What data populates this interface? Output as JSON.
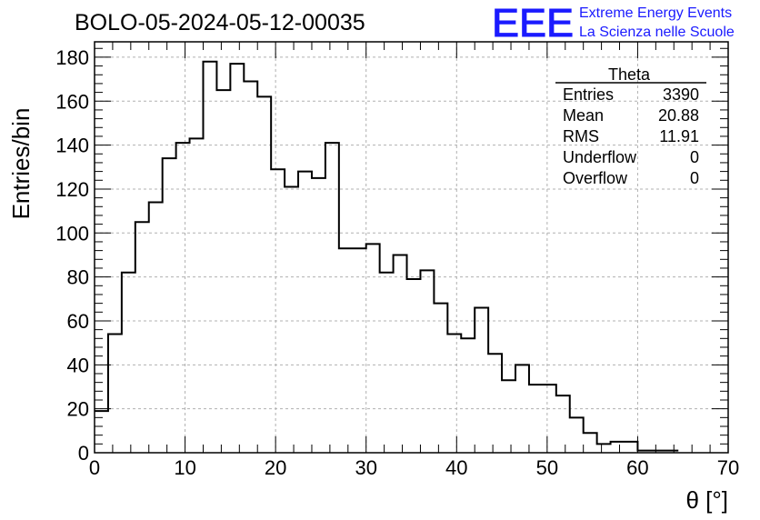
{
  "chart_data": {
    "type": "histogram",
    "title": "BOLO-05-2024-05-12-00035",
    "xlabel": "θ [°]",
    "ylabel": "Entries/bin",
    "xlim": [
      0,
      70
    ],
    "ylim": [
      0,
      187
    ],
    "bin_width": 1.5,
    "bin_start": 0,
    "x_ticks": [
      0,
      10,
      20,
      30,
      40,
      50,
      60,
      70
    ],
    "y_ticks": [
      0,
      20,
      40,
      60,
      80,
      100,
      120,
      140,
      160,
      180
    ],
    "values": [
      19,
      54,
      82,
      105,
      114,
      134,
      141,
      143,
      178,
      165,
      177,
      169,
      162,
      129,
      121,
      128,
      125,
      141,
      93,
      93,
      95,
      82,
      90,
      79,
      83,
      68,
      54,
      52,
      66,
      45,
      33,
      40,
      31,
      31,
      26,
      16,
      9,
      4,
      5,
      5,
      1,
      1,
      1
    ],
    "grid": true,
    "line_color": "#000000"
  },
  "stats": {
    "name": "Theta",
    "rows": [
      {
        "label": "Entries",
        "value": "3390"
      },
      {
        "label": "Mean",
        "value": "20.88"
      },
      {
        "label": "RMS",
        "value": "11.91"
      },
      {
        "label": "Underflow",
        "value": "0"
      },
      {
        "label": "Overflow",
        "value": "0"
      }
    ]
  },
  "logo": {
    "mark": "EEE",
    "line1": "Extreme Energy Events",
    "line2": "La Scienza nelle Scuole",
    "color": "#1a1aff"
  }
}
